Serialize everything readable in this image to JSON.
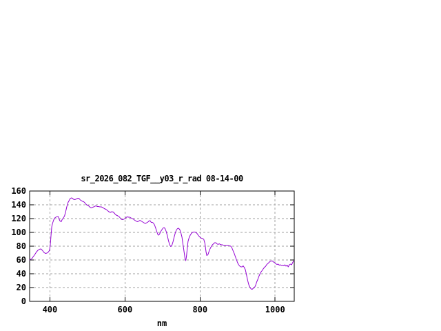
{
  "window": {
    "background": "#ffffff"
  },
  "chart_data": {
    "type": "line",
    "title": "sr_2026_082_TGF__y03_r_rad 08-14-00",
    "xlabel": "nm",
    "ylabel": "",
    "xlim": [
      346,
      1051
    ],
    "ylim": [
      0,
      160
    ],
    "xticks": [
      400,
      600,
      800,
      1000
    ],
    "yticks": [
      0,
      20,
      40,
      60,
      80,
      100,
      120,
      140,
      160
    ],
    "grid": true,
    "legend": "none",
    "colors": {
      "line": "#9400d3",
      "grid": "#a0a0a0",
      "axis": "#000000",
      "text": "#000000"
    },
    "series": [
      {
        "name": "sr_2026_082_TGF__y03_r_rad",
        "points": [
          [
            346,
            60
          ],
          [
            349,
            61
          ],
          [
            352,
            62
          ],
          [
            356,
            65
          ],
          [
            360,
            68
          ],
          [
            364,
            71.5
          ],
          [
            368,
            74
          ],
          [
            372,
            75.5
          ],
          [
            376,
            76
          ],
          [
            380,
            74
          ],
          [
            384,
            71
          ],
          [
            388,
            69.5
          ],
          [
            392,
            70
          ],
          [
            396,
            71.5
          ],
          [
            399,
            74
          ],
          [
            401,
            82
          ],
          [
            403,
            95
          ],
          [
            405,
            108
          ],
          [
            407,
            113
          ],
          [
            410,
            118
          ],
          [
            413,
            121
          ],
          [
            416,
            122
          ],
          [
            419,
            123
          ],
          [
            422,
            123
          ],
          [
            424,
            120
          ],
          [
            427,
            116.5
          ],
          [
            430,
            115.5
          ],
          [
            433,
            119
          ],
          [
            436,
            121
          ],
          [
            439,
            124
          ],
          [
            442,
            130
          ],
          [
            445,
            137
          ],
          [
            448,
            143
          ],
          [
            451,
            146
          ],
          [
            454,
            149
          ],
          [
            457,
            150
          ],
          [
            460,
            149.5
          ],
          [
            463,
            148
          ],
          [
            466,
            147.5
          ],
          [
            469,
            148
          ],
          [
            472,
            149
          ],
          [
            475,
            149.5
          ],
          [
            478,
            149
          ],
          [
            481,
            147
          ],
          [
            484,
            146
          ],
          [
            487,
            145
          ],
          [
            490,
            144.5
          ],
          [
            493,
            143
          ],
          [
            496,
            141
          ],
          [
            499,
            139.5
          ],
          [
            502,
            139
          ],
          [
            505,
            137.5
          ],
          [
            508,
            136
          ],
          [
            511,
            135.5
          ],
          [
            514,
            136.5
          ],
          [
            517,
            137
          ],
          [
            520,
            138
          ],
          [
            523,
            138.5
          ],
          [
            526,
            137.5
          ],
          [
            529,
            137.5
          ],
          [
            533,
            137
          ],
          [
            537,
            137
          ],
          [
            541,
            136
          ],
          [
            545,
            134.5
          ],
          [
            549,
            133.5
          ],
          [
            553,
            132
          ],
          [
            557,
            130
          ],
          [
            561,
            129
          ],
          [
            565,
            130
          ],
          [
            569,
            129.5
          ],
          [
            573,
            127
          ],
          [
            577,
            125
          ],
          [
            581,
            124
          ],
          [
            585,
            122.5
          ],
          [
            589,
            119.5
          ],
          [
            592,
            118.5
          ],
          [
            595,
            118.5
          ],
          [
            598,
            119.5
          ],
          [
            601,
            120.5
          ],
          [
            604,
            122
          ],
          [
            607,
            122.5
          ],
          [
            610,
            122
          ],
          [
            613,
            122
          ],
          [
            616,
            121
          ],
          [
            619,
            120
          ],
          [
            622,
            119.5
          ],
          [
            625,
            118
          ],
          [
            628,
            117
          ],
          [
            631,
            116
          ],
          [
            634,
            115.5
          ],
          [
            637,
            116.5
          ],
          [
            640,
            117.5
          ],
          [
            643,
            116.5
          ],
          [
            646,
            115.5
          ],
          [
            649,
            114.5
          ],
          [
            652,
            113.5
          ],
          [
            655,
            113
          ],
          [
            658,
            114
          ],
          [
            661,
            115
          ],
          [
            664,
            116.5
          ],
          [
            667,
            117
          ],
          [
            670,
            114.5
          ],
          [
            673,
            114.5
          ],
          [
            676,
            113.5
          ],
          [
            679,
            110.5
          ],
          [
            682,
            106
          ],
          [
            685,
            101
          ],
          [
            688,
            96.5
          ],
          [
            690,
            96
          ],
          [
            692,
            97.5
          ],
          [
            695,
            101
          ],
          [
            698,
            103.5
          ],
          [
            701,
            106
          ],
          [
            704,
            107
          ],
          [
            707,
            105.5
          ],
          [
            710,
            101
          ],
          [
            713,
            95
          ],
          [
            716,
            88
          ],
          [
            719,
            82
          ],
          [
            722,
            79.5
          ],
          [
            725,
            81
          ],
          [
            728,
            86.5
          ],
          [
            731,
            93
          ],
          [
            734,
            99
          ],
          [
            737,
            103.5
          ],
          [
            740,
            105.5
          ],
          [
            743,
            106
          ],
          [
            746,
            104
          ],
          [
            749,
            99.5
          ],
          [
            752,
            93
          ],
          [
            755,
            81
          ],
          [
            758,
            70
          ],
          [
            760,
            62
          ],
          [
            762,
            59
          ],
          [
            764,
            66
          ],
          [
            766,
            77
          ],
          [
            768,
            87
          ],
          [
            771,
            92.5
          ],
          [
            774,
            96
          ],
          [
            777,
            98.5
          ],
          [
            780,
            100
          ],
          [
            783,
            100.5
          ],
          [
            786,
            100.5
          ],
          [
            789,
            100
          ],
          [
            792,
            98.5
          ],
          [
            795,
            96
          ],
          [
            798,
            94
          ],
          [
            801,
            92.5
          ],
          [
            804,
            91.5
          ],
          [
            807,
            91
          ],
          [
            810,
            90
          ],
          [
            813,
            84
          ],
          [
            816,
            72
          ],
          [
            818,
            66.5
          ],
          [
            821,
            67.5
          ],
          [
            824,
            72.5
          ],
          [
            827,
            76.5
          ],
          [
            830,
            79.5
          ],
          [
            833,
            82
          ],
          [
            836,
            83.5
          ],
          [
            839,
            85
          ],
          [
            842,
            85
          ],
          [
            845,
            83.5
          ],
          [
            848,
            82.5
          ],
          [
            851,
            83.5
          ],
          [
            854,
            82.5
          ],
          [
            857,
            82
          ],
          [
            860,
            82
          ],
          [
            863,
            81
          ],
          [
            866,
            81
          ],
          [
            870,
            81
          ],
          [
            874,
            81
          ],
          [
            878,
            80.5
          ],
          [
            882,
            80
          ],
          [
            885,
            77.5
          ],
          [
            888,
            73.5
          ],
          [
            891,
            69.5
          ],
          [
            894,
            65
          ],
          [
            897,
            60.5
          ],
          [
            900,
            56
          ],
          [
            903,
            53
          ],
          [
            906,
            51
          ],
          [
            909,
            50
          ],
          [
            912,
            50
          ],
          [
            915,
            51.5
          ],
          [
            918,
            49
          ],
          [
            921,
            45.5
          ],
          [
            924,
            38
          ],
          [
            927,
            30
          ],
          [
            930,
            24
          ],
          [
            933,
            20.5
          ],
          [
            936,
            18
          ],
          [
            939,
            17.5
          ],
          [
            942,
            19
          ],
          [
            945,
            20
          ],
          [
            948,
            23
          ],
          [
            951,
            28
          ],
          [
            954,
            32
          ],
          [
            957,
            36.5
          ],
          [
            960,
            40
          ],
          [
            963,
            43
          ],
          [
            966,
            45
          ],
          [
            969,
            47.5
          ],
          [
            972,
            49.5
          ],
          [
            975,
            51
          ],
          [
            978,
            53.5
          ],
          [
            981,
            55
          ],
          [
            984,
            56.5
          ],
          [
            987,
            58
          ],
          [
            990,
            58.5
          ],
          [
            993,
            58.5
          ],
          [
            996,
            57
          ],
          [
            999,
            56
          ],
          [
            1002,
            54.5
          ],
          [
            1005,
            53.5
          ],
          [
            1008,
            54
          ],
          [
            1011,
            52.5
          ],
          [
            1014,
            53
          ],
          [
            1017,
            52
          ],
          [
            1020,
            52.5
          ],
          [
            1023,
            51.5
          ],
          [
            1026,
            53
          ],
          [
            1029,
            51
          ],
          [
            1032,
            52.5
          ],
          [
            1035,
            50
          ],
          [
            1038,
            53
          ],
          [
            1041,
            54
          ],
          [
            1044,
            53
          ],
          [
            1047,
            56.5
          ],
          [
            1050,
            59
          ]
        ]
      }
    ]
  }
}
